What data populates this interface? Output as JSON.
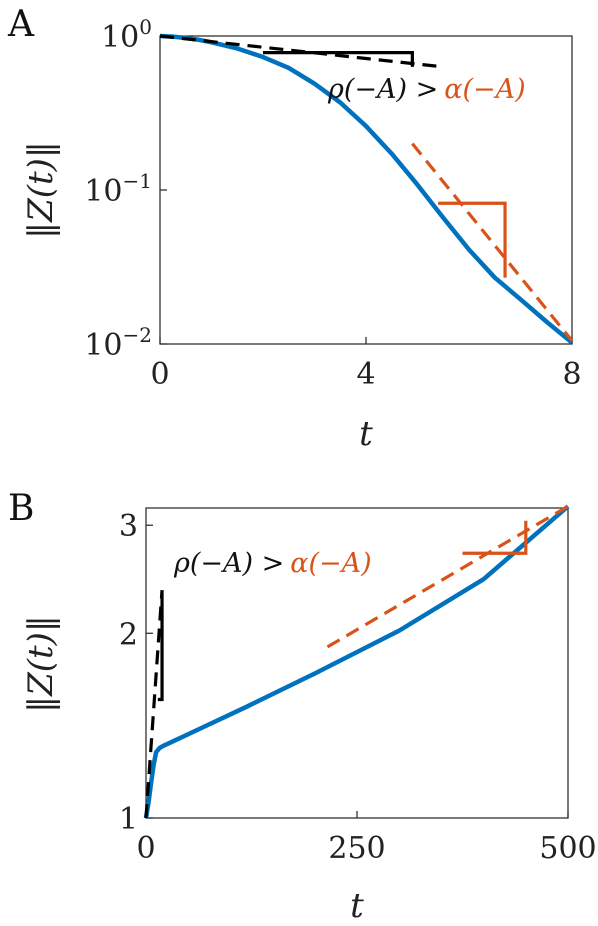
{
  "chart_data": [
    {
      "panel_label": "A",
      "type": "line",
      "xlabel": "t",
      "ylabel": "‖Z(t)‖",
      "xlim": [
        0,
        8
      ],
      "ylim": [
        0.01,
        1
      ],
      "yscale": "log",
      "xticks": [
        0,
        4,
        8
      ],
      "xtick_labels": [
        "0",
        "4",
        "8"
      ],
      "yticks": [
        1,
        0.1,
        0.01
      ],
      "ytick_labels": [
        {
          "base": "10",
          "exp": "0"
        },
        {
          "base": "10",
          "exp": "−1"
        },
        {
          "base": "10",
          "exp": "−2"
        }
      ],
      "annotation": {
        "left": "ρ(−A) >",
        "right": "α(−A)"
      },
      "series": [
        {
          "role": "norm",
          "color": "#0072BD",
          "style": "solid",
          "x": [
            0,
            0.25,
            0.5,
            0.75,
            1,
            1.5,
            2,
            2.5,
            3,
            3.5,
            4,
            4.5,
            5,
            5.5,
            6,
            6.5,
            7,
            7.5,
            8
          ],
          "y": [
            1.0,
            0.99,
            0.97,
            0.945,
            0.91,
            0.83,
            0.73,
            0.62,
            0.49,
            0.37,
            0.26,
            0.172,
            0.108,
            0.066,
            0.041,
            0.027,
            0.0195,
            0.014,
            0.0102
          ]
        },
        {
          "role": "asymptote-rho",
          "color": "#000000",
          "style": "dashed",
          "x": [
            0,
            5.5
          ],
          "y": [
            1.0,
            0.63
          ]
        },
        {
          "role": "asymptote-alpha",
          "color": "#D95319",
          "style": "dashed",
          "x": [
            4.9,
            8
          ],
          "y": [
            0.2,
            0.0105
          ]
        }
      ],
      "slope_triangles": [
        {
          "color": "#000000",
          "x": [
            2.0,
            4.9
          ],
          "y": [
            0.78,
            0.63
          ]
        },
        {
          "color": "#D95319",
          "x": [
            5.4,
            6.7
          ],
          "y": [
            0.082,
            0.027
          ]
        }
      ]
    },
    {
      "panel_label": "B",
      "type": "line",
      "xlabel": "t",
      "ylabel": "‖Z(t)‖",
      "xlim": [
        0,
        500
      ],
      "ylim": [
        1,
        3.2
      ],
      "yscale": "log",
      "xticks": [
        0,
        250,
        500
      ],
      "xtick_labels": [
        "0",
        "250",
        "500"
      ],
      "yticks": [
        1,
        2,
        3
      ],
      "ytick_labels": [
        {
          "base": "1",
          "exp": ""
        },
        {
          "base": "2",
          "exp": ""
        },
        {
          "base": "3",
          "exp": ""
        }
      ],
      "annotation": {
        "left": "ρ(−A) >",
        "right": "α(−A)"
      },
      "series": [
        {
          "role": "norm",
          "color": "#0072BD",
          "style": "solid",
          "x": [
            0,
            3,
            6,
            9,
            12,
            16,
            20,
            60,
            120,
            200,
            300,
            400,
            500
          ],
          "y": [
            1.0,
            1.06,
            1.14,
            1.22,
            1.28,
            1.3,
            1.31,
            1.39,
            1.52,
            1.72,
            2.02,
            2.45,
            3.22
          ]
        },
        {
          "role": "asymptote-rho",
          "color": "#000000",
          "style": "dashed",
          "x": [
            0,
            19
          ],
          "y": [
            1.0,
            2.35
          ]
        },
        {
          "role": "asymptote-alpha",
          "color": "#D95319",
          "style": "dashed",
          "x": [
            215,
            500
          ],
          "y": [
            1.9,
            3.22
          ]
        }
      ],
      "slope_triangles": [
        {
          "color": "#000000",
          "x": [
            14,
            19
          ],
          "y": [
            1.56,
            2.35
          ]
        },
        {
          "color": "#D95319",
          "x": [
            375,
            450
          ],
          "y": [
            2.7,
            3.05
          ]
        }
      ]
    }
  ]
}
